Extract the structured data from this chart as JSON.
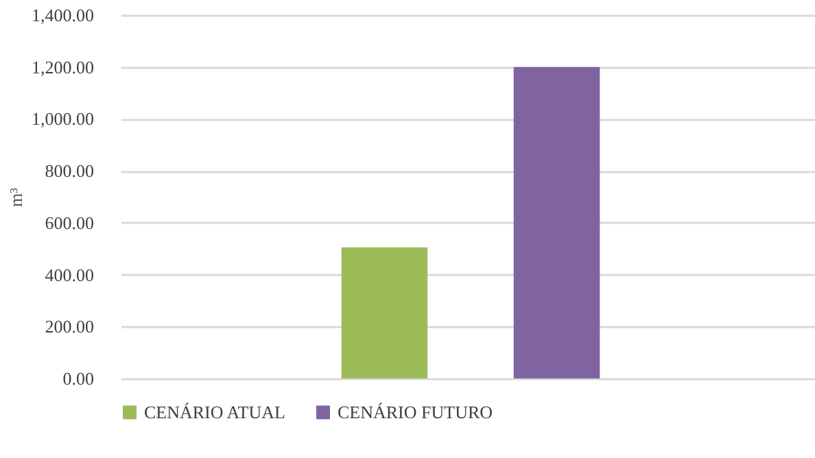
{
  "chart_data": {
    "type": "bar",
    "ylabel": "m³",
    "categories": [
      null
    ],
    "series": [
      {
        "name": "CENÁRIO ATUAL",
        "color": "#9bbb59",
        "values": [
          505
        ]
      },
      {
        "name": "CENÁRIO FUTURO",
        "color": "#8064a2",
        "values": [
          1200
        ]
      }
    ],
    "ylim": [
      0,
      1400
    ],
    "yticks": [
      {
        "value": 0,
        "label": "0.00"
      },
      {
        "value": 200,
        "label": "200.00"
      },
      {
        "value": 400,
        "label": "400.00"
      },
      {
        "value": 600,
        "label": "600.00"
      },
      {
        "value": 800,
        "label": "800.00"
      },
      {
        "value": 1000,
        "label": "1,000.00"
      },
      {
        "value": 1200,
        "label": "1,200.00"
      },
      {
        "value": 1400,
        "label": "1,400.00"
      }
    ],
    "grid": "y",
    "legend": "bottom"
  }
}
